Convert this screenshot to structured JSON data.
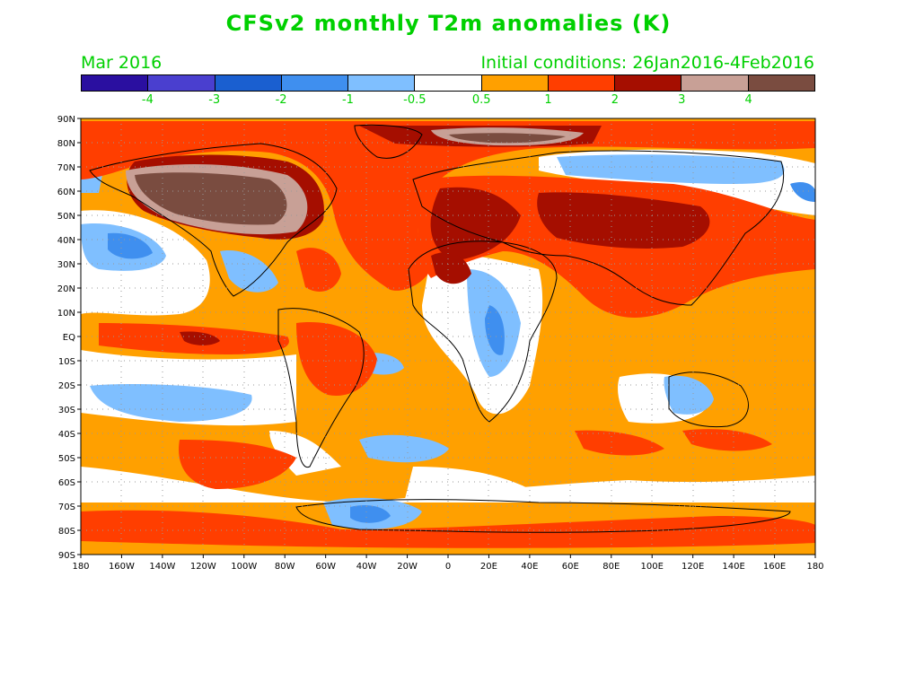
{
  "title": "CFSv2 monthly T2m anomalies (K)",
  "valid_month": "Mar 2016",
  "initial_conditions": "Initial conditions: 26Jan2016-4Feb2016",
  "colorbar": {
    "colors": [
      "#2a0fa0",
      "#4a3fcf",
      "#1a5fd0",
      "#3f8fef",
      "#7fbfff",
      "#ffffff",
      "#ffa000",
      "#ff3e00",
      "#a50e00",
      "#c8a096",
      "#7a4c40"
    ],
    "labels": [
      "-4",
      "-3",
      "-2",
      "-1",
      "-0.5",
      "0.5",
      "1",
      "2",
      "3",
      "4"
    ]
  },
  "lat_labels": [
    "90N",
    "80N",
    "70N",
    "60N",
    "50N",
    "40N",
    "30N",
    "20N",
    "10N",
    "EQ",
    "10S",
    "20S",
    "30S",
    "40S",
    "50S",
    "60S",
    "70S",
    "80S",
    "90S"
  ],
  "lon_labels": [
    "180",
    "160W",
    "140W",
    "120W",
    "100W",
    "80W",
    "60W",
    "40W",
    "20W",
    "0",
    "20E",
    "40E",
    "60E",
    "80E",
    "100E",
    "120E",
    "140E",
    "160E",
    "180"
  ]
}
